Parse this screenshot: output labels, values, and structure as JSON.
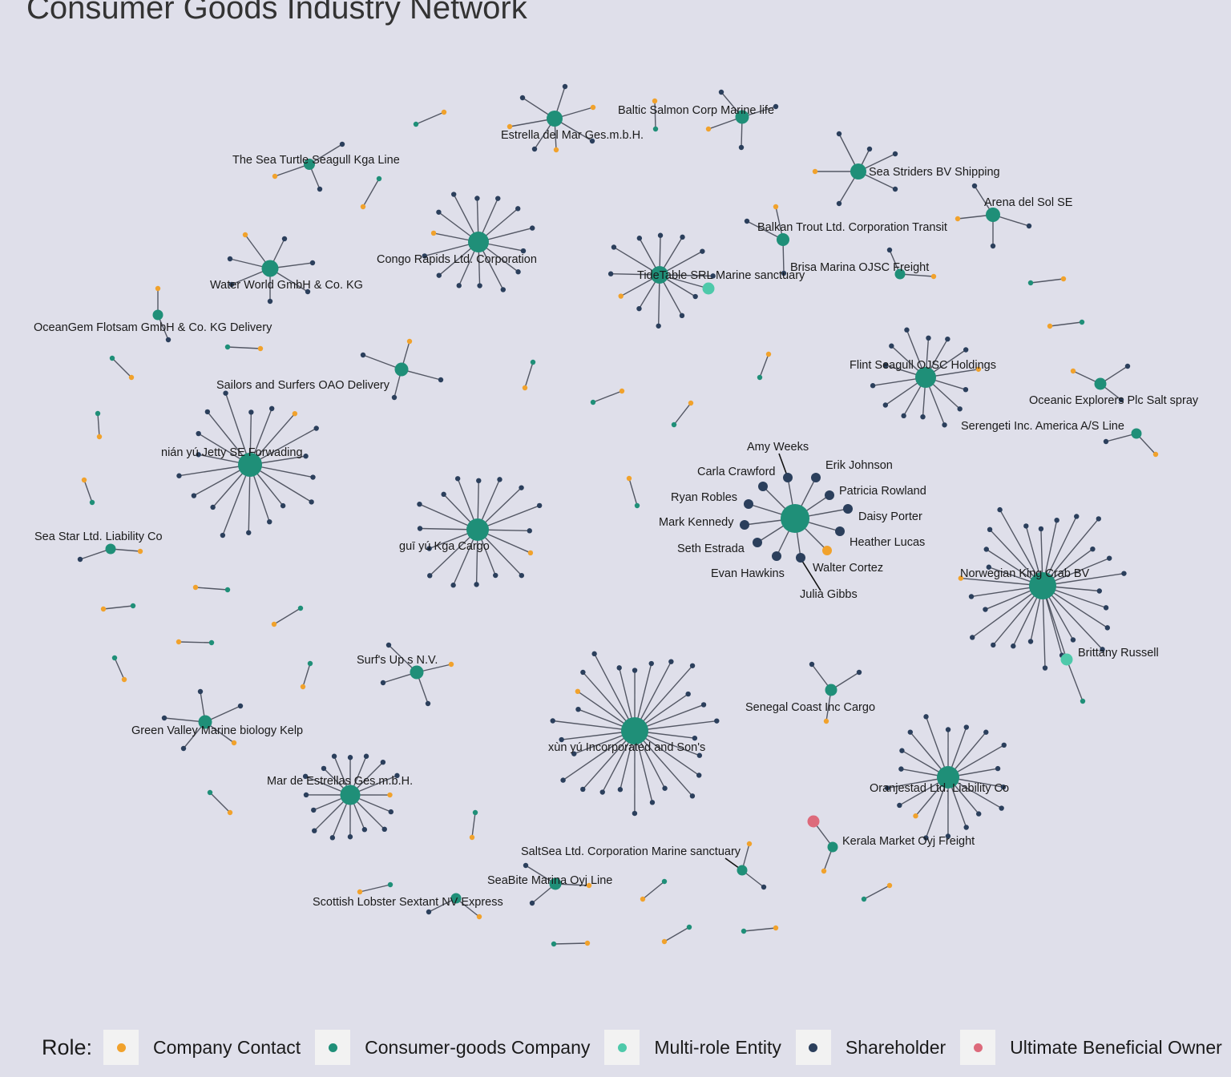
{
  "title": "Consumer Goods Industry Network",
  "legend": {
    "title": "Role:",
    "items": [
      {
        "label": "Company Contact",
        "color": "#f1a22c"
      },
      {
        "label": "Consumer-goods Company",
        "color": "#1f8f78"
      },
      {
        "label": "Multi-role Entity",
        "color": "#4ec9aa"
      },
      {
        "label": "Shareholder",
        "color": "#2b3f5c"
      },
      {
        "label": "Ultimate Beneficial Owner",
        "color": "#dd6a7b"
      }
    ]
  },
  "labels": {
    "baltic": "Baltic Salmon Corp Marine life",
    "estrella": "Estrella del Mar Ges.m.b.H.",
    "seaturtle": "The Sea Turtle Seagull Kga Line",
    "seastriders": "Sea Striders BV Shipping",
    "arena": "Arena del Sol SE",
    "balkan": "Balkan Trout Ltd. Corporation Transit",
    "congo": "Congo Rapids   Ltd. Corporation",
    "brisa": "Brisa Marina OJSC Freight",
    "waterworld": "Water World GmbH & Co. KG",
    "tidetable": "TideTable SRL Marine sanctuary",
    "oceangem": "OceanGem Flotsam GmbH & Co. KG Delivery",
    "flint": "Flint Seagull OJSC Holdings",
    "sailors": "Sailors and Surfers OAO Delivery",
    "oceanic": "Oceanic Explorers Plc Salt spray",
    "serengeti": "Serengeti  Inc. America A/S Line",
    "amy": "Amy Weeks",
    "nianyu": "nián yú Jetty SE Forwading",
    "erik": "Erik Johnson",
    "carla": "Carla Crawford",
    "patricia": "Patricia Rowland",
    "ryan": "Ryan Robles",
    "daisy": "Daisy Porter",
    "mark": "Mark Kennedy",
    "heather": "Heather Lucas",
    "seastar": "Sea Star Ltd. Liability Co",
    "guiyu": "guī yú Kga Cargo",
    "seth": "Seth Estrada",
    "walter": "Walter Cortez",
    "evan": "Evan Hawkins",
    "norwegian": "Norwegian King Crab BV",
    "julia": "Julia Gibbs",
    "brittany": "Brittany Russell",
    "surfs": "Surf's Up s N.V.",
    "senegal": "Senegal Coast  Inc Cargo",
    "greenvalley": "Green Valley Marine biology Kelp",
    "xunyu": "xùn yú Incorporated and Son's",
    "mardeestrellas": "Mar de Estrellas Ges.m.b.H.",
    "oranjestad": "Oranjestad Ltd. Liability Co",
    "kerala": "Kerala  Market Oyj Freight",
    "saltsea": "SaltSea Ltd. Corporation Marine sanctuary",
    "seabite": "SeaBite Marina Oyj Line",
    "scottish": "Scottish Lobster Sextant NV Express"
  }
}
